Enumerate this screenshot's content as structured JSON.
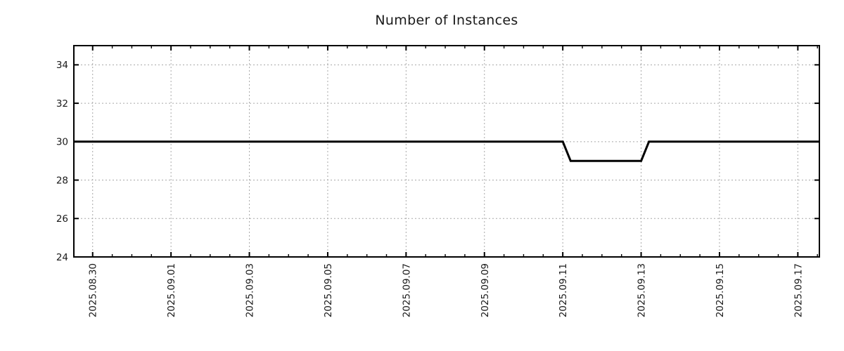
{
  "chart_data": {
    "type": "line",
    "title": "Number of Instances",
    "xlabel": "",
    "ylabel": "",
    "legend": "none",
    "grid": true,
    "x_tick_labels": [
      "2025.08.30",
      "2025.09.01",
      "2025.09.03",
      "2025.09.05",
      "2025.09.07",
      "2025.09.09",
      "2025.09.11",
      "2025.09.13",
      "2025.09.15",
      "2025.09.17"
    ],
    "x_tick_days": [
      0,
      2,
      4,
      6,
      8,
      10,
      12,
      14,
      16,
      18
    ],
    "x_minor_tick_step_days": 0.5,
    "x_range_days": [
      -0.48,
      18.55
    ],
    "y_ticks": [
      24,
      26,
      28,
      30,
      32,
      34
    ],
    "y_range": [
      24,
      35
    ],
    "series": [
      {
        "name": "instances",
        "color": "#000000",
        "points_day_value": [
          [
            -0.48,
            30
          ],
          [
            12.0,
            30
          ],
          [
            12.2,
            29
          ],
          [
            14.0,
            29
          ],
          [
            14.2,
            30
          ],
          [
            18.55,
            30
          ]
        ]
      }
    ],
    "colors": {
      "grid": "#a8a8a8",
      "axis": "#000000",
      "text": "#1a1a1a"
    }
  }
}
